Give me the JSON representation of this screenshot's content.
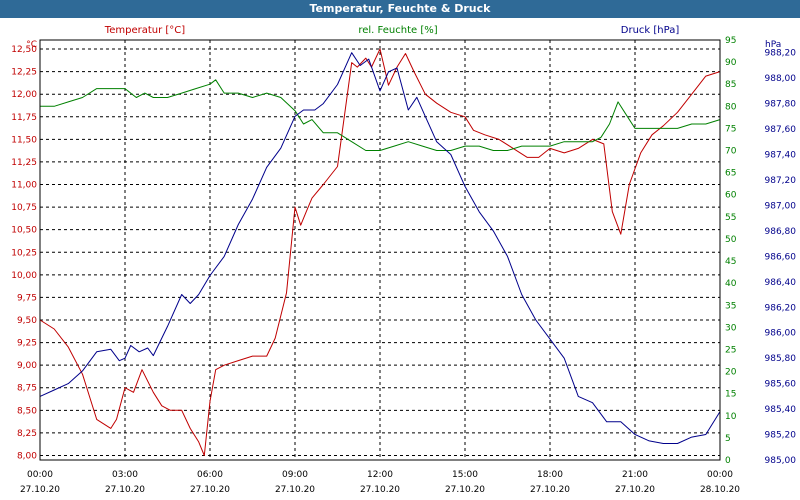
{
  "title": "Temperatur, Feuchte & Druck",
  "chart_data": {
    "type": "line",
    "title": "Temperatur, Feuchte & Druck",
    "x_ticks": [
      {
        "time": "00:00",
        "date": "27.10.20"
      },
      {
        "time": "03:00",
        "date": "27.10.20"
      },
      {
        "time": "06:00",
        "date": "27.10.20"
      },
      {
        "time": "09:00",
        "date": "27.10.20"
      },
      {
        "time": "12:00",
        "date": "27.10.20"
      },
      {
        "time": "15:00",
        "date": "27.10.20"
      },
      {
        "time": "18:00",
        "date": "27.10.20"
      },
      {
        "time": "21:00",
        "date": "27.10.20"
      },
      {
        "time": "00:00",
        "date": "28.10.20"
      }
    ],
    "xlim_hours": [
      0,
      24
    ],
    "axes": {
      "temperature": {
        "label": "Temperatur [°C]",
        "unit": "°C",
        "color": "#c00000",
        "ylim": [
          7.95,
          12.6
        ],
        "ticks": [
          "8,00",
          "8,25",
          "8,50",
          "8,75",
          "9,00",
          "9,25",
          "9,50",
          "9,75",
          "10,00",
          "10,25",
          "10,50",
          "10,75",
          "11,00",
          "11,25",
          "11,50",
          "11,75",
          "12,00",
          "12,25",
          "12,50"
        ],
        "tick_values": [
          8.0,
          8.25,
          8.5,
          8.75,
          9.0,
          9.25,
          9.5,
          9.75,
          10.0,
          10.25,
          10.5,
          10.75,
          11.0,
          11.25,
          11.5,
          11.75,
          12.0,
          12.25,
          12.5
        ]
      },
      "humidity": {
        "label": "rel. Feuchte [%]",
        "unit": "%",
        "color": "#008000",
        "ylim": [
          0,
          95
        ],
        "ticks": [
          "0",
          "5",
          "10",
          "15",
          "20",
          "25",
          "30",
          "35",
          "40",
          "45",
          "50",
          "55",
          "60",
          "65",
          "70",
          "75",
          "80",
          "85",
          "90",
          "95"
        ],
        "tick_values": [
          0,
          5,
          10,
          15,
          20,
          25,
          30,
          35,
          40,
          45,
          50,
          55,
          60,
          65,
          70,
          75,
          80,
          85,
          90,
          95
        ]
      },
      "pressure": {
        "label": "Druck [hPa]",
        "unit": "hPa",
        "color": "#00008b",
        "ylim": [
          985.0,
          988.3
        ],
        "ticks": [
          "985,00",
          "985,20",
          "985,40",
          "985,60",
          "985,80",
          "986,00",
          "986,20",
          "986,40",
          "986,60",
          "986,80",
          "987,00",
          "987,20",
          "987,40",
          "987,60",
          "987,80",
          "988,00",
          "988,20"
        ],
        "tick_values": [
          985.0,
          985.2,
          985.4,
          985.6,
          985.8,
          986.0,
          986.2,
          986.4,
          986.6,
          986.8,
          987.0,
          987.2,
          987.4,
          987.6,
          987.8,
          988.0,
          988.2
        ]
      }
    },
    "grid": true,
    "series": [
      {
        "name": "Temperatur [°C]",
        "axis": "temperature",
        "color": "#c00000",
        "x": [
          0,
          0.5,
          1,
          1.5,
          2,
          2.5,
          2.7,
          3,
          3.3,
          3.6,
          4,
          4.3,
          4.6,
          5,
          5.3,
          5.6,
          5.8,
          6,
          6.2,
          6.5,
          7,
          7.5,
          8,
          8.3,
          8.7,
          9,
          9.2,
          9.4,
          9.6,
          10,
          10.5,
          11,
          11.2,
          11.5,
          11.7,
          12,
          12.3,
          12.6,
          12.9,
          13.2,
          13.6,
          14,
          14.5,
          15,
          15.3,
          15.7,
          16.2,
          16.7,
          17.2,
          17.6,
          18,
          18.5,
          19,
          19.5,
          19.9,
          20.2,
          20.5,
          20.8,
          21.2,
          21.6,
          22,
          22.5,
          23,
          23.5,
          24
        ],
        "y": [
          9.5,
          9.4,
          9.2,
          8.9,
          8.4,
          8.3,
          8.4,
          8.75,
          8.7,
          8.95,
          8.7,
          8.55,
          8.5,
          8.5,
          8.3,
          8.15,
          8.0,
          8.6,
          8.95,
          9.0,
          9.05,
          9.1,
          9.1,
          9.3,
          9.8,
          10.75,
          10.55,
          10.7,
          10.85,
          11.0,
          11.2,
          12.35,
          12.3,
          12.4,
          12.3,
          12.5,
          12.1,
          12.3,
          12.45,
          12.25,
          12.0,
          11.9,
          11.8,
          11.75,
          11.6,
          11.55,
          11.5,
          11.4,
          11.3,
          11.3,
          11.4,
          11.35,
          11.4,
          11.5,
          11.45,
          10.7,
          10.45,
          11.0,
          11.35,
          11.55,
          11.65,
          11.8,
          12.0,
          12.2,
          12.25
        ]
      },
      {
        "name": "rel. Feuchte [%]",
        "axis": "humidity",
        "color": "#008000",
        "x": [
          0,
          0.5,
          1,
          1.5,
          2,
          2.5,
          3,
          3.2,
          3.4,
          3.7,
          4,
          4.5,
          5,
          5.5,
          6,
          6.2,
          6.5,
          7,
          7.5,
          8,
          8.5,
          9,
          9.3,
          9.6,
          10,
          10.5,
          11,
          11.5,
          12,
          12.5,
          13,
          13.5,
          14,
          14.5,
          15,
          15.5,
          16,
          16.5,
          17,
          17.5,
          18,
          18.5,
          19,
          19.5,
          19.8,
          20.1,
          20.4,
          20.7,
          21,
          21.5,
          22,
          22.5,
          23,
          23.5,
          24
        ],
        "y": [
          80,
          80,
          81,
          82,
          84,
          84,
          84,
          83,
          82,
          83,
          82,
          82,
          83,
          84,
          85,
          86,
          83,
          83,
          82,
          83,
          82,
          79,
          76,
          77,
          74,
          74,
          72,
          70,
          70,
          71,
          72,
          71,
          70,
          70,
          71,
          71,
          70,
          70,
          71,
          71,
          71,
          72,
          72,
          72,
          73,
          76,
          81,
          78,
          75,
          75,
          75,
          75,
          76,
          76,
          77
        ]
      },
      {
        "name": "Druck [hPa]",
        "axis": "pressure",
        "color": "#00008b",
        "x": [
          0,
          0.5,
          1,
          1.5,
          2,
          2.5,
          2.8,
          3,
          3.2,
          3.5,
          3.8,
          4,
          4.5,
          5,
          5.3,
          5.6,
          6,
          6.5,
          7,
          7.5,
          8,
          8.5,
          9,
          9.3,
          9.7,
          10,
          10.5,
          11,
          11.3,
          11.6,
          12,
          12.3,
          12.6,
          13,
          13.3,
          13.6,
          14,
          14.5,
          15,
          15.5,
          16,
          16.5,
          17,
          17.5,
          18,
          18.5,
          19,
          19.5,
          20,
          20.5,
          21,
          21.5,
          22,
          22.5,
          23,
          23.5,
          24
        ],
        "y": [
          985.5,
          985.55,
          985.6,
          985.7,
          985.85,
          985.87,
          985.78,
          985.8,
          985.9,
          985.85,
          985.88,
          985.82,
          986.05,
          986.3,
          986.23,
          986.3,
          986.45,
          986.6,
          986.85,
          987.05,
          987.3,
          987.45,
          987.7,
          987.75,
          987.75,
          987.8,
          987.95,
          988.2,
          988.1,
          988.15,
          987.9,
          988.05,
          988.08,
          987.75,
          987.85,
          987.7,
          987.5,
          987.4,
          987.15,
          986.95,
          986.8,
          986.6,
          986.3,
          986.1,
          985.95,
          985.8,
          985.5,
          985.45,
          985.3,
          985.3,
          985.2,
          985.15,
          985.13,
          985.13,
          985.18,
          985.2,
          985.38
        ]
      }
    ]
  }
}
